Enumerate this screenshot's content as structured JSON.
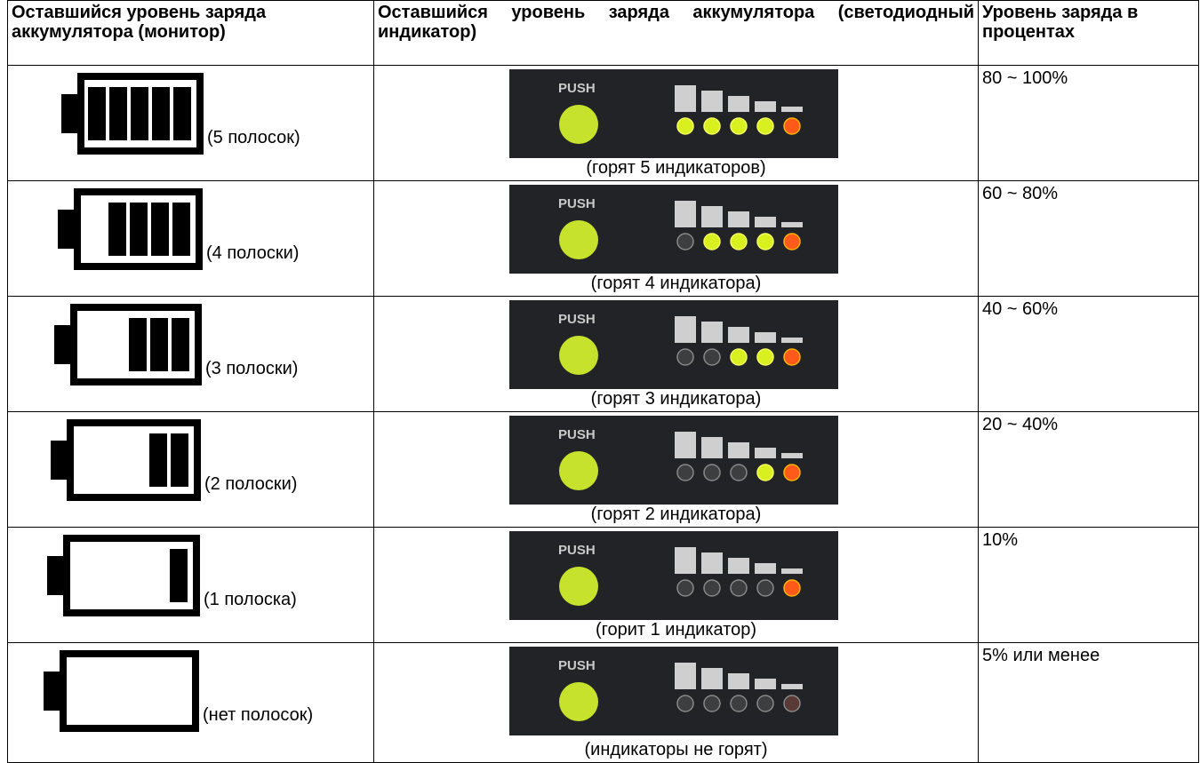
{
  "header": {
    "cells": [
      "Оставшийся уровень заряда аккумулятора (монитор)",
      "Оставшийся уровень заряда аккумулятора (светодиодный индикатор)",
      "Уровень заряда в процентах"
    ]
  },
  "panel_label": "PUSH",
  "rows": [
    {
      "monitor": "(5 полосок)",
      "led": "(горят 5 индикаторов)",
      "percent": "80 ~ 100%"
    },
    {
      "monitor": "(4 полоски)",
      "led": "(горят 4 индикатора)",
      "percent": "60 ~ 80%"
    },
    {
      "monitor": "(3 полоски)",
      "led": "(горят 3 индикатора)",
      "percent": "40 ~ 60%"
    },
    {
      "monitor": "(2 полоски)",
      "led": "(горят 2 индикатора)",
      "percent": "20 ~ 40%"
    },
    {
      "monitor": "(1 полоска)",
      "led": "(горит 1 индикатор)",
      "percent": "10%"
    },
    {
      "monitor": "(нет полосок)",
      "led": "(индикаторы не горят)",
      "percent": "5% или менее"
    }
  ]
}
